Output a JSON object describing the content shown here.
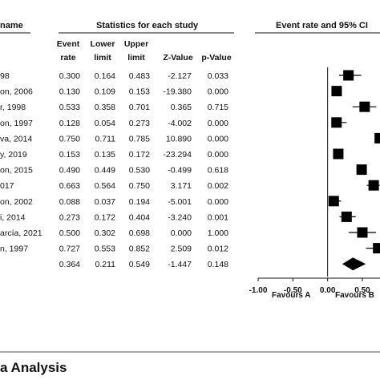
{
  "headers": {
    "study_name": "name",
    "statistics": "Statistics for each study",
    "event_rate_ci": "Event rate and 95% CI"
  },
  "columns": {
    "event_rate": [
      "Event",
      "rate"
    ],
    "lower_limit": [
      "Lower",
      "limit"
    ],
    "upper_limit": [
      "Upper",
      "limit"
    ],
    "z_value": "Z-Value",
    "p_value": "p-Value"
  },
  "rows": [
    {
      "study": "98",
      "event": "0.300",
      "lower": "0.164",
      "upper": "0.483",
      "z": "-2.127",
      "p": "0.033"
    },
    {
      "study": "on, 2006",
      "event": "0.130",
      "lower": "0.109",
      "upper": "0.153",
      "z": "-19.380",
      "p": "0.000"
    },
    {
      "study": "r, 1998",
      "event": "0.533",
      "lower": "0.358",
      "upper": "0.701",
      "z": "0.365",
      "p": "0.715"
    },
    {
      "study": "on, 1997",
      "event": "0.128",
      "lower": "0.054",
      "upper": "0.273",
      "z": "-4.002",
      "p": "0.000"
    },
    {
      "study": "va, 2014",
      "event": "0.750",
      "lower": "0.711",
      "upper": "0.785",
      "z": "10.890",
      "p": "0.000"
    },
    {
      "study": "y, 2019",
      "event": "0.153",
      "lower": "0.135",
      "upper": "0.172",
      "z": "-23.294",
      "p": "0.000"
    },
    {
      "study": "on, 2015",
      "event": "0.490",
      "lower": "0.449",
      "upper": "0.530",
      "z": "-0.499",
      "p": "0.618"
    },
    {
      "study": "017",
      "event": "0.663",
      "lower": "0.564",
      "upper": "0.750",
      "z": "3.171",
      "p": "0.002"
    },
    {
      "study": "on, 2002",
      "event": "0.088",
      "lower": "0.037",
      "upper": "0.194",
      "z": "-5.001",
      "p": "0.000"
    },
    {
      "study": "i, 2014",
      "event": "0.273",
      "lower": "0.172",
      "upper": "0.404",
      "z": "-3.240",
      "p": "0.001"
    },
    {
      "study": "arcía, 2021",
      "event": "0.500",
      "lower": "0.302",
      "upper": "0.698",
      "z": "0.000",
      "p": "1.000"
    },
    {
      "study": "n, 1997",
      "event": "0.727",
      "lower": "0.553",
      "upper": "0.852",
      "z": "2.509",
      "p": "0.012"
    }
  ],
  "summary_row": {
    "event": "0.364",
    "lower": "0.211",
    "upper": "0.549",
    "z": "-1.447",
    "p": "0.148"
  },
  "x_ticks": [
    "-1.00",
    "-0.50",
    "0.00",
    "0.50"
  ],
  "favours": {
    "left": "Favours A",
    "right": "Favours B"
  },
  "caption": "a Analysis",
  "colors": {
    "ink": "#111111",
    "marker": "#000000"
  },
  "chart_data": {
    "type": "scatter",
    "xlim": [
      -1.0,
      0.65
    ],
    "x_ticks": [
      -1.0,
      -0.5,
      0.0,
      0.5
    ],
    "estimates": [
      0.3,
      0.13,
      0.533,
      0.128,
      0.75,
      0.153,
      0.49,
      0.663,
      0.088,
      0.273,
      0.5,
      0.727
    ],
    "lower": [
      0.164,
      0.109,
      0.358,
      0.054,
      0.711,
      0.135,
      0.449,
      0.564,
      0.037,
      0.172,
      0.302,
      0.553
    ],
    "upper": [
      0.483,
      0.153,
      0.701,
      0.273,
      0.785,
      0.172,
      0.53,
      0.75,
      0.194,
      0.404,
      0.698,
      0.852
    ],
    "summary": {
      "estimate": 0.364,
      "lower": 0.211,
      "upper": 0.549
    }
  }
}
